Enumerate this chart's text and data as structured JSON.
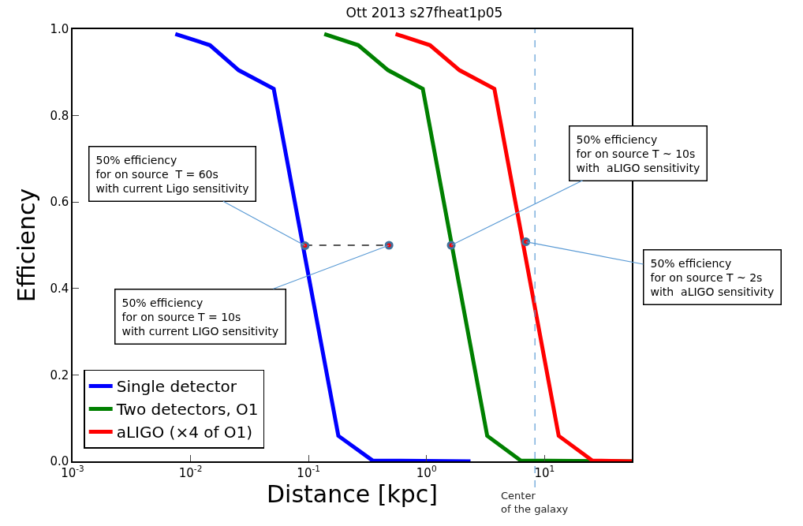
{
  "chart_data": {
    "type": "line",
    "title": "Ott 2013 s27fheat1p05",
    "xlabel": "Distance [kpc]",
    "ylabel": "Efficiency",
    "log": "x",
    "xlim": [
      0.001,
      55
    ],
    "xticks": [
      {
        "value": 0.001,
        "label": "10$^{-3}$"
      },
      {
        "value": 0.01,
        "label": "10$^{-2}$"
      },
      {
        "value": 0.1,
        "label": "10$^{-1}$"
      },
      {
        "value": 1,
        "label": "10$^{0}$"
      },
      {
        "value": 10,
        "label": "10$^{1}$"
      }
    ],
    "ylim": [
      0,
      1
    ],
    "yticks": [
      {
        "value": 0,
        "label": "0.0"
      },
      0.2,
      0.4,
      0.6,
      0.8,
      {
        "value": 1,
        "label": "1.0"
      }
    ],
    "legend": "bottom left",
    "series": [
      {
        "name": "Single detector",
        "color": "#0000ff",
        "x": [
          0.00743,
          0.0146,
          0.0256,
          0.0507,
          0.179,
          0.348,
          2.36
        ],
        "values": [
          0.989,
          0.963,
          0.905,
          0.862,
          0.059,
          0.002,
          0.0
        ]
      },
      {
        "name": "Two detectors, O1",
        "color": "#008000",
        "x": [
          0.136,
          0.264,
          0.473,
          0.93,
          3.27,
          6.28,
          55
        ],
        "values": [
          0.989,
          0.963,
          0.905,
          0.862,
          0.059,
          0.002,
          0.0
        ]
      },
      {
        "name": "aLIGO (×4 of O1)",
        "color": "#ff0000",
        "x": [
          0.547,
          1.07,
          1.905,
          3.76,
          13.2,
          25.4,
          55
        ],
        "values": [
          0.989,
          0.963,
          0.905,
          0.862,
          0.059,
          0.002,
          0.0
        ]
      },
      {
        "type": "line",
        "color": "#555555",
        "line_style": "dashed",
        "x": [
          0.0935,
          0.481
        ],
        "values": [
          0.5,
          0.5
        ]
      },
      {
        "type": "scatter",
        "color": "#41719c",
        "marker": "circle",
        "x": [
          0.0935,
          0.481,
          1.62,
          6.95
        ],
        "values": [
          0.499,
          0.5,
          0.5,
          0.508
        ]
      }
    ],
    "ref_lines": [
      {
        "axis": "x",
        "value": 8.3,
        "label": "Center\nof the galaxy",
        "color": "#5b9bd5",
        "line_style": "dashed"
      }
    ],
    "annotations": [
      {
        "text": "50% efficiency\nfor on source  T = 60s\nwith current Ligo sensitivity",
        "x": 0.0935,
        "y": 0.499
      },
      {
        "text": "50% efficiency\nfor on source T = 10s\nwith current LIGO sensitivity",
        "x": 0.481,
        "y": 0.5
      },
      {
        "text": "50% efficiency\nfor on source T ~ 10s\nwith  aLIGO sensitivity",
        "x": 1.62,
        "y": 0.5
      },
      {
        "text": "50% efficiency\nfor on source T ~ 2s\nwith  aLIGO sensitivity",
        "x": 6.95,
        "y": 0.508
      }
    ]
  }
}
